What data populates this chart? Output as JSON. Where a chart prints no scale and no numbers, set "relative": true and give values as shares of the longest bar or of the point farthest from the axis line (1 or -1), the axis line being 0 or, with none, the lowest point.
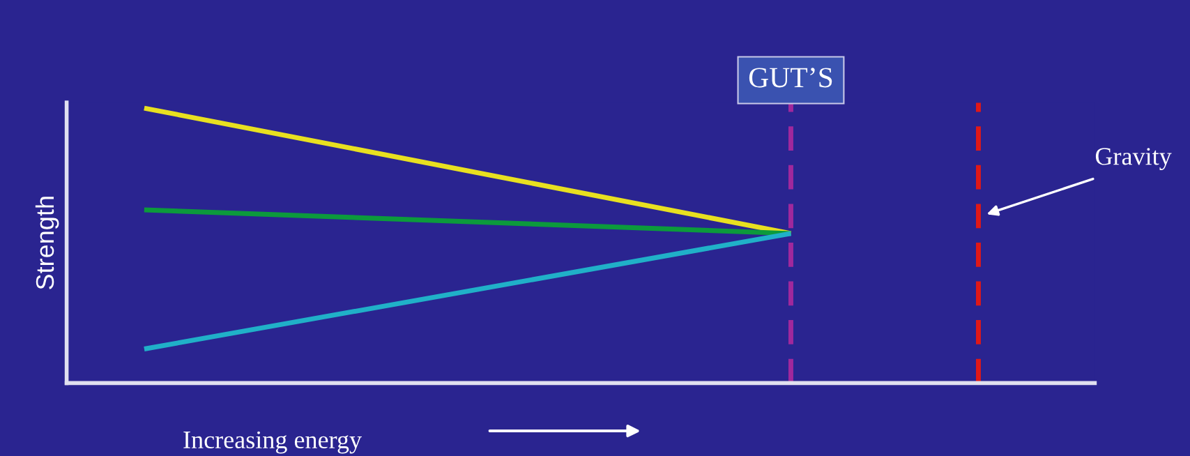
{
  "chart_data": {
    "type": "line",
    "relative": true,
    "categories": [
      null,
      null
    ],
    "ylabel": "Strength",
    "xlabel": "Increasing energy",
    "series": [
      {
        "color": "#e8e020",
        "values": [
          1,
          0.544
        ]
      },
      {
        "color": "#0c9a3c",
        "values": [
          0.63,
          0.544
        ]
      },
      {
        "color": "#20b0c8",
        "values": [
          0.124,
          0.544
        ]
      }
    ],
    "annotations": [
      "GUT’S",
      "Gravity"
    ],
    "legend": false,
    "marker": "none",
    "line_style": "solid"
  }
}
